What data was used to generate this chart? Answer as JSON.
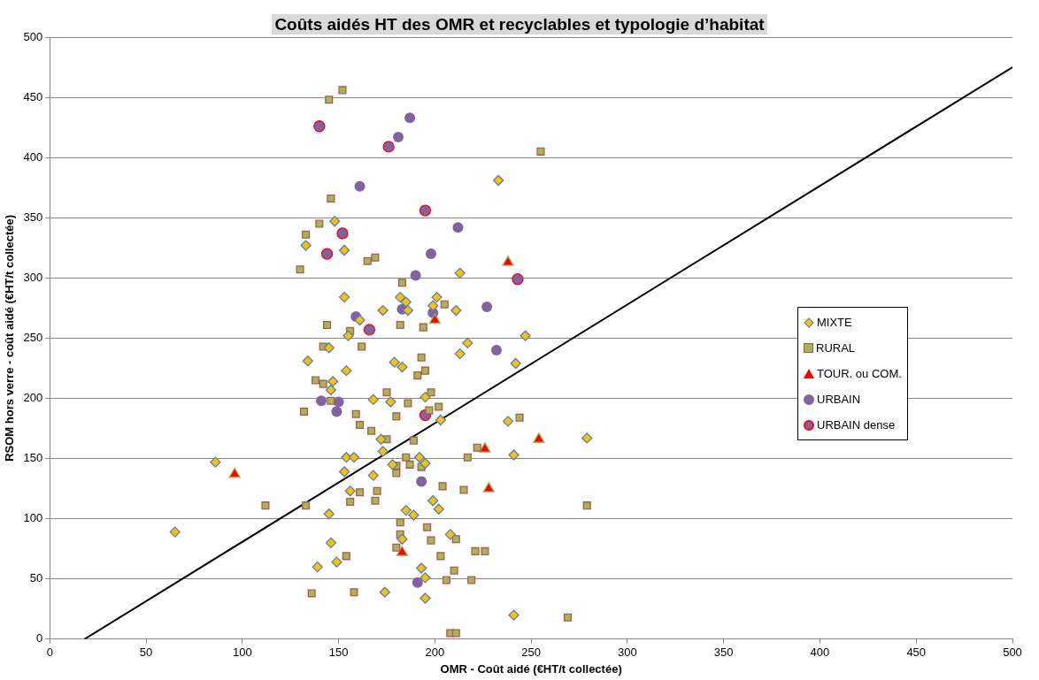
{
  "chart_data": {
    "type": "scatter",
    "title": "Coûts aidés HT des OMR et recyclables et typologie d’habitat",
    "xlabel": "OMR - Coût aidé (€HT/t collectée)",
    "ylabel": "RSOM hors verre - coût aidé (€HT/t collectée)",
    "xlim": [
      0,
      500
    ],
    "xticks": [
      0,
      50,
      100,
      150,
      200,
      250,
      300,
      350,
      400,
      450,
      500
    ],
    "ylim": [
      0,
      500
    ],
    "yticks": [
      0,
      50,
      100,
      150,
      200,
      250,
      300,
      350,
      400,
      450,
      500
    ],
    "grid": "y",
    "legend": "right",
    "series": [
      {
        "name": "MIXTE",
        "marker": "diamond",
        "color": "#ffc000",
        "x": [
          65,
          86,
          233,
          148,
          133,
          153,
          213,
          153,
          182,
          185,
          201,
          199,
          173,
          186,
          211,
          161,
          155,
          247,
          145,
          217,
          213,
          134,
          179,
          183,
          242,
          154,
          147,
          146,
          195,
          168,
          177,
          203,
          238,
          172,
          173,
          241,
          192,
          154,
          158,
          178,
          195,
          153,
          168,
          156,
          145,
          185,
          189,
          199,
          202,
          183,
          208,
          146,
          149,
          139,
          193,
          195,
          174,
          195,
          241,
          279
        ],
        "values": [
          89,
          147,
          381,
          347,
          327,
          323,
          304,
          284,
          284,
          280,
          284,
          277,
          273,
          273,
          273,
          265,
          252,
          252,
          242,
          246,
          237,
          231,
          230,
          226,
          229,
          223,
          214,
          207,
          201,
          199,
          197,
          182,
          181,
          166,
          156,
          153,
          151,
          151,
          151,
          145,
          146,
          139,
          136,
          123,
          104,
          107,
          103,
          115,
          108,
          83,
          87,
          80,
          64,
          60,
          59,
          51,
          39,
          34,
          20,
          167
        ]
      },
      {
        "name": "RURAL",
        "marker": "square",
        "color": "#9bbb59",
        "x": [
          112,
          152,
          145,
          255,
          146,
          140,
          133,
          169,
          165,
          130,
          183,
          205,
          144,
          156,
          182,
          194,
          142,
          162,
          193,
          195,
          191,
          138,
          142,
          175,
          198,
          146,
          186,
          202,
          132,
          197,
          180,
          159,
          161,
          167,
          244,
          175,
          189,
          222,
          185,
          217,
          180,
          187,
          193,
          180,
          204,
          215,
          161,
          170,
          156,
          169,
          133,
          182,
          182,
          180,
          196,
          198,
          211,
          154,
          203,
          221,
          226,
          210,
          206,
          219,
          136,
          158,
          269,
          208,
          211,
          279
        ],
        "values": [
          111,
          456,
          448,
          405,
          366,
          345,
          336,
          317,
          314,
          307,
          296,
          278,
          261,
          256,
          261,
          259,
          243,
          243,
          234,
          223,
          219,
          215,
          212,
          205,
          205,
          198,
          196,
          193,
          189,
          190,
          185,
          187,
          178,
          173,
          184,
          166,
          165,
          159,
          151,
          151,
          144,
          145,
          143,
          138,
          127,
          124,
          122,
          123,
          114,
          115,
          111,
          97,
          87,
          76,
          93,
          82,
          83,
          69,
          69,
          73,
          73,
          57,
          49,
          49,
          38,
          39,
          18,
          5,
          5,
          111
        ]
      },
      {
        "name": "TOUR. ou COM.",
        "marker": "triangle",
        "color": "#ff0000",
        "x": [
          96,
          238,
          200,
          254,
          226,
          228,
          183
        ],
        "values": [
          137,
          313,
          265,
          166,
          158,
          125,
          72
        ]
      },
      {
        "name": "URBAIN",
        "marker": "circle",
        "color": "#8064a2",
        "x": [
          187,
          181,
          161,
          212,
          198,
          190,
          183,
          227,
          199,
          159,
          232,
          141,
          150,
          149,
          193,
          191
        ],
        "values": [
          433,
          417,
          376,
          342,
          320,
          302,
          274,
          276,
          271,
          268,
          240,
          198,
          197,
          189,
          131,
          47
        ]
      },
      {
        "name": "URBAIN dense",
        "marker": "circle",
        "color": "#8064a2",
        "x": [
          140,
          176,
          195,
          152,
          144,
          243,
          166,
          195
        ],
        "values": [
          426,
          409,
          356,
          337,
          320,
          299,
          257,
          186
        ]
      },
      {
        "type": "line",
        "color": "#000000",
        "marker": "none",
        "x": [
          18,
          500
        ],
        "values": [
          0,
          475
        ]
      }
    ]
  }
}
